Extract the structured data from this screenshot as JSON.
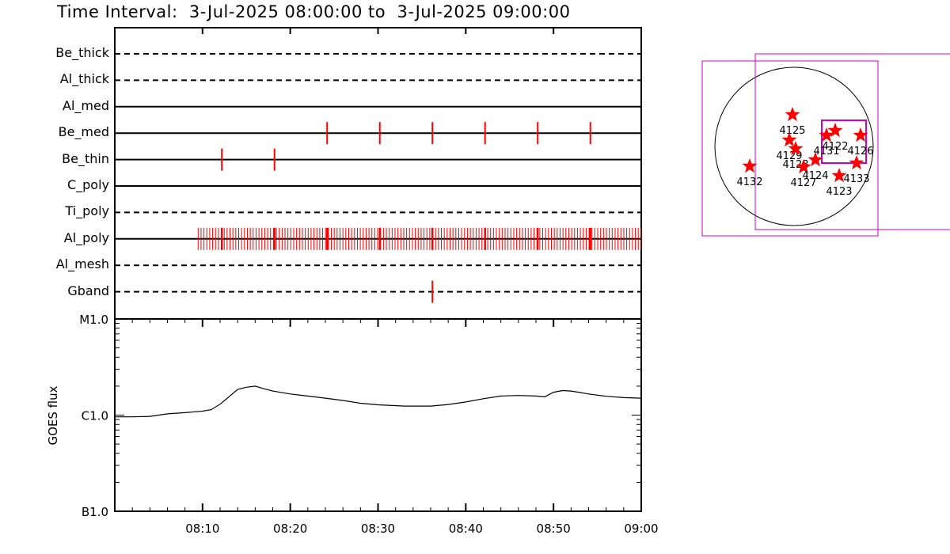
{
  "title": "Time Interval:  3-Jul-2025 08:00:00 to  3-Jul-2025 09:00:00",
  "colors": {
    "event": "#ff0000",
    "fov": "#cc00cc",
    "line": "#000000",
    "star": "#ff0000"
  },
  "chart_data": [
    {
      "type": "timeline",
      "rows": [
        {
          "label": "Be_thick",
          "style": "dashed",
          "events": []
        },
        {
          "label": "Al_thick",
          "style": "dashed",
          "events": []
        },
        {
          "label": "Al_med",
          "style": "solid",
          "events": []
        },
        {
          "label": "Be_med",
          "style": "solid",
          "events": [
            24.2,
            30.2,
            36.2,
            42.2,
            48.2,
            54.2
          ]
        },
        {
          "label": "Be_thin",
          "style": "solid",
          "events": [
            12.2,
            18.2
          ]
        },
        {
          "label": "C_poly",
          "style": "solid",
          "events": []
        },
        {
          "label": "Ti_poly",
          "style": "dashed",
          "events": []
        },
        {
          "label": "Al_poly",
          "style": "solid",
          "events_range": [
            9.5,
            60.0
          ],
          "events_step": 0.33,
          "major_events": [
            12.2,
            18.2,
            24.2,
            30.2,
            36.2,
            42.2,
            48.2,
            54.2
          ]
        },
        {
          "label": "Al_mesh",
          "style": "dashed",
          "events": []
        },
        {
          "label": "Gband",
          "style": "dashed",
          "events": [
            36.2
          ]
        }
      ],
      "x_range_minutes": [
        0,
        60
      ]
    },
    {
      "type": "line",
      "ylabel": "GOES flux",
      "yscale": "log",
      "yticks": [
        "B1.0",
        "C1.0",
        "M1.0"
      ],
      "ylim": [
        1e-07,
        1e-05
      ],
      "xticks": [
        "08:10",
        "08:20",
        "08:30",
        "08:40",
        "08:50",
        "09:00"
      ],
      "x_range_minutes": [
        0,
        60
      ],
      "x": [
        0,
        2,
        4,
        6,
        8,
        10,
        11,
        12,
        13,
        14,
        15,
        16,
        17,
        18,
        20,
        22,
        24,
        26,
        28,
        30,
        33,
        36,
        38,
        40,
        42,
        44,
        46,
        48,
        49,
        50,
        51,
        52,
        53,
        54,
        56,
        58,
        60
      ],
      "y": [
        9.6e-07,
        9.6e-07,
        9.7e-07,
        1.03e-06,
        1.06e-06,
        1.1e-06,
        1.14e-06,
        1.3e-06,
        1.55e-06,
        1.85e-06,
        1.95e-06,
        2e-06,
        1.88e-06,
        1.78e-06,
        1.66e-06,
        1.58e-06,
        1.5e-06,
        1.42e-06,
        1.33e-06,
        1.28e-06,
        1.24e-06,
        1.24e-06,
        1.29e-06,
        1.37e-06,
        1.48e-06,
        1.58e-06,
        1.6e-06,
        1.58e-06,
        1.55e-06,
        1.73e-06,
        1.8e-06,
        1.78e-06,
        1.72e-06,
        1.66e-06,
        1.57e-06,
        1.52e-06,
        1.5e-06
      ]
    },
    {
      "type": "scatter",
      "series_kind": "active-regions",
      "points": [
        {
          "label": "4125",
          "x": -0.02,
          "y": 0.4
        },
        {
          "label": "4129",
          "x": -0.06,
          "y": 0.08
        },
        {
          "label": "4128",
          "x": 0.02,
          "y": -0.03
        },
        {
          "label": "4127",
          "x": 0.12,
          "y": -0.26
        },
        {
          "label": "4124",
          "x": 0.27,
          "y": -0.17
        },
        {
          "label": "4131",
          "x": 0.41,
          "y": 0.14
        },
        {
          "label": "4122",
          "x": 0.52,
          "y": 0.2
        },
        {
          "label": "4126",
          "x": 0.84,
          "y": 0.14
        },
        {
          "label": "4133",
          "x": 0.79,
          "y": -0.21
        },
        {
          "label": "4123",
          "x": 0.57,
          "y": -0.37
        },
        {
          "label": "4132",
          "x": -0.56,
          "y": -0.25
        }
      ]
    }
  ]
}
